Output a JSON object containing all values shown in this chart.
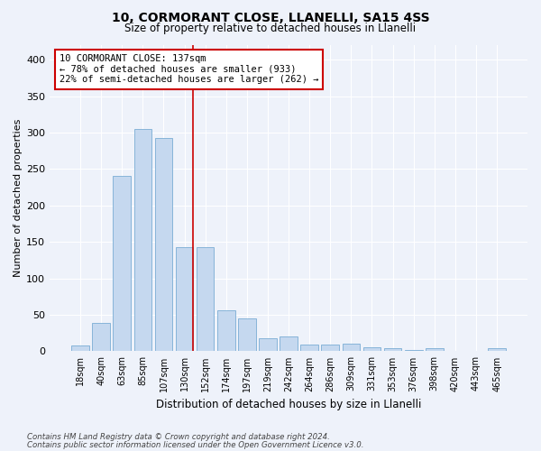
{
  "title1": "10, CORMORANT CLOSE, LLANELLI, SA15 4SS",
  "title2": "Size of property relative to detached houses in Llanelli",
  "xlabel": "Distribution of detached houses by size in Llanelli",
  "ylabel": "Number of detached properties",
  "categories": [
    "18sqm",
    "40sqm",
    "63sqm",
    "85sqm",
    "107sqm",
    "130sqm",
    "152sqm",
    "174sqm",
    "197sqm",
    "219sqm",
    "242sqm",
    "264sqm",
    "286sqm",
    "309sqm",
    "331sqm",
    "353sqm",
    "376sqm",
    "398sqm",
    "420sqm",
    "443sqm",
    "465sqm"
  ],
  "values": [
    8,
    39,
    241,
    305,
    292,
    143,
    143,
    56,
    45,
    18,
    20,
    9,
    9,
    10,
    5,
    4,
    2,
    4,
    1,
    0,
    4
  ],
  "bar_color": "#c5d8ef",
  "bar_edge_color": "#7aadd4",
  "annotation_text": "10 CORMORANT CLOSE: 137sqm\n← 78% of detached houses are smaller (933)\n22% of semi-detached houses are larger (262) →",
  "annotation_box_color": "#ffffff",
  "annotation_box_edge": "#cc0000",
  "vline_color": "#cc0000",
  "vline_x_index": 5.42,
  "footer1": "Contains HM Land Registry data © Crown copyright and database right 2024.",
  "footer2": "Contains public sector information licensed under the Open Government Licence v3.0.",
  "bg_color": "#eef2fa",
  "grid_color": "#ffffff",
  "ylim": [
    0,
    420
  ],
  "yticks": [
    0,
    50,
    100,
    150,
    200,
    250,
    300,
    350,
    400
  ]
}
